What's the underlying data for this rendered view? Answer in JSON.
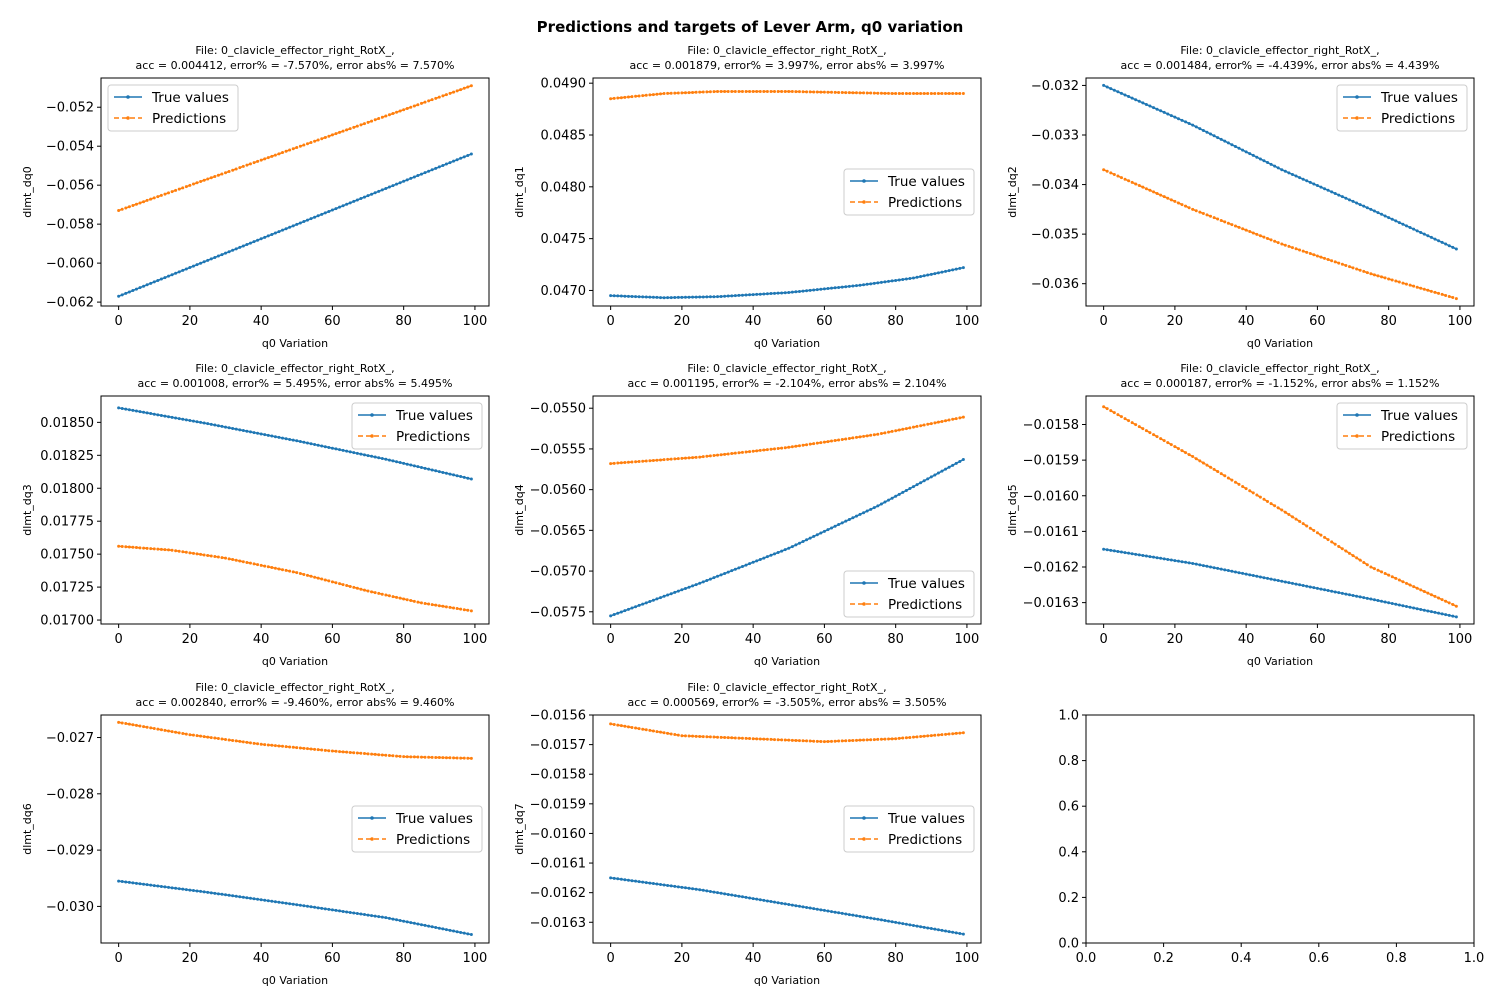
{
  "figure": {
    "title": "Predictions and targets of Lever Arm, q0 variation"
  },
  "colors": {
    "true": "#1f77b4",
    "pred": "#ff7f0e"
  },
  "chart_data": [
    {
      "type": "line",
      "title": "File: 0_clavicle_effector_right_RotX_,",
      "subtitle": "acc = 0.004412, error% = -7.570%, error abs% = 7.570%",
      "xlabel": "q0 Variation",
      "ylabel": "dlmt_dq0",
      "xlim": [
        -4.95,
        103.95
      ],
      "ylim": [
        -0.0622,
        -0.0505
      ],
      "xticks": [
        0,
        20,
        40,
        60,
        80,
        100
      ],
      "yticks": [
        -0.062,
        -0.06,
        -0.058,
        -0.056,
        -0.054,
        -0.052
      ],
      "ytick_labels": [
        "−0.062",
        "−0.060",
        "−0.058",
        "−0.056",
        "−0.054",
        "−0.052"
      ],
      "legend": "upper left",
      "series": [
        {
          "name": "True values",
          "x_range": [
            0,
            99
          ],
          "anchors": [
            [
              0,
              -0.0617
            ],
            [
              99,
              -0.0544
            ]
          ]
        },
        {
          "name": "Predictions",
          "x_range": [
            0,
            99
          ],
          "anchors": [
            [
              0,
              -0.0573
            ],
            [
              99,
              -0.0509
            ]
          ]
        }
      ]
    },
    {
      "type": "line",
      "title": "File: 0_clavicle_effector_right_RotX_,",
      "subtitle": "acc = 0.001879, error% = 3.997%, error abs% = 3.997%",
      "xlabel": "q0 Variation",
      "ylabel": "dlmt_dq1",
      "xlim": [
        -4.95,
        103.95
      ],
      "ylim": [
        0.04685,
        0.04905
      ],
      "xticks": [
        0,
        20,
        40,
        60,
        80,
        100
      ],
      "yticks": [
        0.047,
        0.0475,
        0.048,
        0.0485,
        0.049
      ],
      "ytick_labels": [
        "0.0470",
        "0.0475",
        "0.0480",
        "0.0485",
        "0.0490"
      ],
      "legend": "center right",
      "series": [
        {
          "name": "True values",
          "x_range": [
            0,
            99
          ],
          "anchors": [
            [
              0,
              0.04695
            ],
            [
              15,
              0.04693
            ],
            [
              30,
              0.04694
            ],
            [
              50,
              0.04698
            ],
            [
              70,
              0.04705
            ],
            [
              85,
              0.04712
            ],
            [
              99,
              0.04722
            ]
          ]
        },
        {
          "name": "Predictions",
          "x_range": [
            0,
            99
          ],
          "anchors": [
            [
              0,
              0.04885
            ],
            [
              15,
              0.0489
            ],
            [
              30,
              0.04892
            ],
            [
              50,
              0.04892
            ],
            [
              65,
              0.04891
            ],
            [
              80,
              0.0489
            ],
            [
              99,
              0.0489
            ]
          ]
        }
      ]
    },
    {
      "type": "line",
      "title": "File: 0_clavicle_effector_right_RotX_,",
      "subtitle": "acc = 0.001484, error% = -4.439%, error abs% = 4.439%",
      "xlabel": "q0 Variation",
      "ylabel": "dlmt_dq2",
      "xlim": [
        -4.95,
        103.95
      ],
      "ylim": [
        -0.03645,
        -0.03185
      ],
      "xticks": [
        0,
        20,
        40,
        60,
        80,
        100
      ],
      "yticks": [
        -0.036,
        -0.035,
        -0.034,
        -0.033,
        -0.032
      ],
      "ytick_labels": [
        "−0.036",
        "−0.035",
        "−0.034",
        "−0.033",
        "−0.032"
      ],
      "legend": "upper right",
      "series": [
        {
          "name": "True values",
          "x_range": [
            0,
            99
          ],
          "anchors": [
            [
              0,
              -0.032
            ],
            [
              25,
              -0.0328
            ],
            [
              50,
              -0.0337
            ],
            [
              75,
              -0.0345
            ],
            [
              99,
              -0.0353
            ]
          ]
        },
        {
          "name": "Predictions",
          "x_range": [
            0,
            99
          ],
          "anchors": [
            [
              0,
              -0.0337
            ],
            [
              25,
              -0.0345
            ],
            [
              50,
              -0.0352
            ],
            [
              75,
              -0.0358
            ],
            [
              99,
              -0.0363
            ]
          ]
        }
      ]
    },
    {
      "type": "line",
      "title": "File: 0_clavicle_effector_right_RotX_,",
      "subtitle": "acc = 0.001008, error% = 5.495%, error abs% = 5.495%",
      "xlabel": "q0 Variation",
      "ylabel": "dlmt_dq3",
      "xlim": [
        -4.95,
        103.95
      ],
      "ylim": [
        0.01697,
        0.0187
      ],
      "xticks": [
        0,
        20,
        40,
        60,
        80,
        100
      ],
      "yticks": [
        0.017,
        0.01725,
        0.0175,
        0.01775,
        0.018,
        0.01825,
        0.0185
      ],
      "ytick_labels": [
        "0.01700",
        "0.01725",
        "0.01750",
        "0.01775",
        "0.01800",
        "0.01825",
        "0.01850"
      ],
      "legend": "upper right",
      "series": [
        {
          "name": "True values",
          "x_range": [
            0,
            99
          ],
          "anchors": [
            [
              0,
              0.01861
            ],
            [
              25,
              0.01849
            ],
            [
              50,
              0.01836
            ],
            [
              75,
              0.01822
            ],
            [
              99,
              0.01807
            ]
          ]
        },
        {
          "name": "Predictions",
          "x_range": [
            0,
            99
          ],
          "anchors": [
            [
              0,
              0.01756
            ],
            [
              15,
              0.01753
            ],
            [
              30,
              0.01747
            ],
            [
              50,
              0.01736
            ],
            [
              70,
              0.01722
            ],
            [
              85,
              0.01713
            ],
            [
              99,
              0.01707
            ]
          ]
        }
      ]
    },
    {
      "type": "line",
      "title": "File: 0_clavicle_effector_right_RotX_,",
      "subtitle": "acc = 0.001195, error% = -2.104%, error abs% = 2.104%",
      "xlabel": "q0 Variation",
      "ylabel": "dlmt_dq4",
      "xlim": [
        -4.95,
        103.95
      ],
      "ylim": [
        -0.05765,
        -0.05485
      ],
      "xticks": [
        0,
        20,
        40,
        60,
        80,
        100
      ],
      "yticks": [
        -0.0575,
        -0.057,
        -0.0565,
        -0.056,
        -0.0555,
        -0.055
      ],
      "ytick_labels": [
        "−0.0575",
        "−0.0570",
        "−0.0565",
        "−0.0560",
        "−0.0555",
        "−0.0550"
      ],
      "legend": "lower right",
      "series": [
        {
          "name": "True values",
          "x_range": [
            0,
            99
          ],
          "anchors": [
            [
              0,
              -0.05755
            ],
            [
              25,
              -0.05715
            ],
            [
              50,
              -0.05672
            ],
            [
              75,
              -0.0562
            ],
            [
              99,
              -0.05563
            ]
          ]
        },
        {
          "name": "Predictions",
          "x_range": [
            0,
            99
          ],
          "anchors": [
            [
              0,
              -0.05568
            ],
            [
              25,
              -0.0556
            ],
            [
              50,
              -0.05548
            ],
            [
              75,
              -0.05532
            ],
            [
              99,
              -0.05511
            ]
          ]
        }
      ]
    },
    {
      "type": "line",
      "title": "File: 0_clavicle_effector_right_RotX_,",
      "subtitle": "acc = 0.000187, error% = -1.152%, error abs% = 1.152%",
      "xlabel": "q0 Variation",
      "ylabel": "dlmt_dq5",
      "xlim": [
        -4.95,
        103.95
      ],
      "ylim": [
        -0.01636,
        -0.01572
      ],
      "xticks": [
        0,
        20,
        40,
        60,
        80,
        100
      ],
      "yticks": [
        -0.0163,
        -0.0162,
        -0.0161,
        -0.016,
        -0.0159,
        -0.0158
      ],
      "ytick_labels": [
        "−0.0163",
        "−0.0162",
        "−0.0161",
        "−0.0160",
        "−0.0159",
        "−0.0158"
      ],
      "legend": "upper right",
      "series": [
        {
          "name": "True values",
          "x_range": [
            0,
            99
          ],
          "anchors": [
            [
              0,
              -0.01615
            ],
            [
              25,
              -0.01619
            ],
            [
              50,
              -0.01624
            ],
            [
              75,
              -0.01629
            ],
            [
              99,
              -0.01634
            ]
          ]
        },
        {
          "name": "Predictions",
          "x_range": [
            0,
            99
          ],
          "anchors": [
            [
              0,
              -0.01575
            ],
            [
              25,
              -0.01589
            ],
            [
              50,
              -0.01604
            ],
            [
              75,
              -0.0162
            ],
            [
              99,
              -0.01631
            ]
          ]
        }
      ]
    },
    {
      "type": "line",
      "title": "File: 0_clavicle_effector_right_RotX_,",
      "subtitle": "acc = 0.002840, error% = -9.460%, error abs% = 9.460%",
      "xlabel": "q0 Variation",
      "ylabel": "dlmt_dq6",
      "xlim": [
        -4.95,
        103.95
      ],
      "ylim": [
        -0.03065,
        -0.0266
      ],
      "xticks": [
        0,
        20,
        40,
        60,
        80,
        100
      ],
      "yticks": [
        -0.03,
        -0.029,
        -0.028,
        -0.027
      ],
      "ytick_labels": [
        "−0.030",
        "−0.029",
        "−0.028",
        "−0.027"
      ],
      "legend": "center right",
      "series": [
        {
          "name": "True values",
          "x_range": [
            0,
            99
          ],
          "anchors": [
            [
              0,
              -0.02955
            ],
            [
              25,
              -0.02975
            ],
            [
              50,
              -0.02997
            ],
            [
              75,
              -0.0302
            ],
            [
              99,
              -0.0305
            ]
          ]
        },
        {
          "name": "Predictions",
          "x_range": [
            0,
            99
          ],
          "anchors": [
            [
              0,
              -0.02673
            ],
            [
              20,
              -0.02695
            ],
            [
              40,
              -0.02712
            ],
            [
              60,
              -0.02724
            ],
            [
              80,
              -0.02734
            ],
            [
              99,
              -0.02737
            ]
          ]
        }
      ]
    },
    {
      "type": "line",
      "title": "File: 0_clavicle_effector_right_RotX_,",
      "subtitle": "acc = 0.000569, error% = -3.505%, error abs% = 3.505%",
      "xlabel": "q0 Variation",
      "ylabel": "dlmt_dq7",
      "xlim": [
        -4.95,
        103.95
      ],
      "ylim": [
        -0.01637,
        -0.0156
      ],
      "xticks": [
        0,
        20,
        40,
        60,
        80,
        100
      ],
      "yticks": [
        -0.0163,
        -0.0162,
        -0.0161,
        -0.016,
        -0.0159,
        -0.0158,
        -0.0157,
        -0.0156
      ],
      "ytick_labels": [
        "−0.0163",
        "−0.0162",
        "−0.0161",
        "−0.0160",
        "−0.0159",
        "−0.0158",
        "−0.0157",
        "−0.0156"
      ],
      "legend": "center right",
      "series": [
        {
          "name": "True values",
          "x_range": [
            0,
            99
          ],
          "anchors": [
            [
              0,
              -0.01615
            ],
            [
              25,
              -0.01619
            ],
            [
              50,
              -0.01624
            ],
            [
              75,
              -0.01629
            ],
            [
              99,
              -0.01634
            ]
          ]
        },
        {
          "name": "Predictions",
          "x_range": [
            0,
            99
          ],
          "anchors": [
            [
              0,
              -0.01563
            ],
            [
              20,
              -0.01567
            ],
            [
              40,
              -0.01568
            ],
            [
              60,
              -0.01569
            ],
            [
              80,
              -0.01568
            ],
            [
              99,
              -0.01566
            ]
          ]
        }
      ]
    },
    {
      "type": "line",
      "title": "",
      "subtitle": "",
      "xlabel": "",
      "ylabel": "",
      "xlim": [
        0,
        1
      ],
      "ylim": [
        0,
        1
      ],
      "xticks": [
        0,
        0.2,
        0.4,
        0.6,
        0.8,
        1.0
      ],
      "xtick_labels": [
        "0.0",
        "0.2",
        "0.4",
        "0.6",
        "0.8",
        "1.0"
      ],
      "yticks": [
        0,
        0.2,
        0.4,
        0.6,
        0.8,
        1.0
      ],
      "ytick_labels": [
        "0.0",
        "0.2",
        "0.4",
        "0.6",
        "0.8",
        "1.0"
      ],
      "legend": "",
      "series": []
    }
  ]
}
